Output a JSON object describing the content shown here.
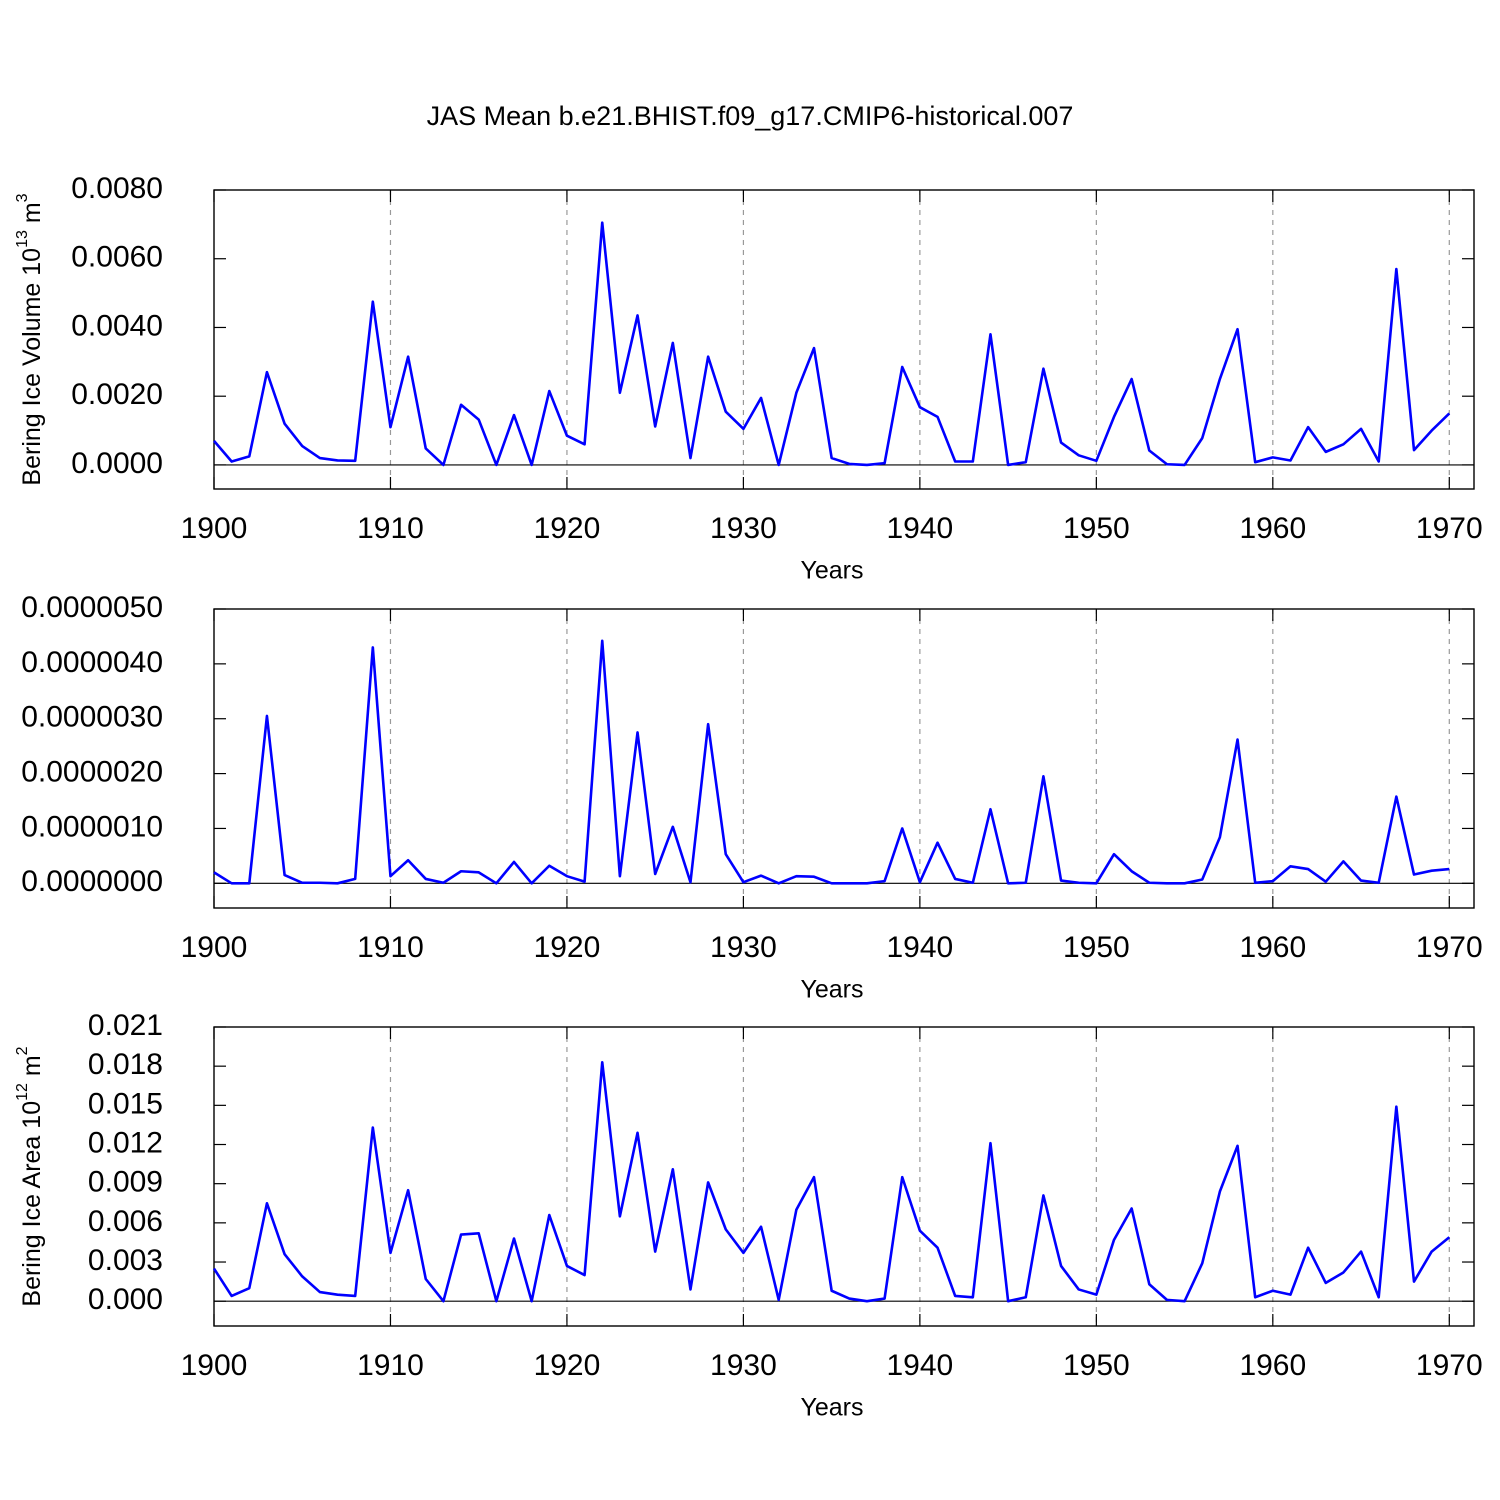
{
  "chart_data": [
    {
      "type": "line",
      "title": "JAS Mean b.e21.BHIST.f09_g17.CMIP6-historical.007",
      "ylabel": [
        "Bering Ice Volume 10",
        "13",
        " m",
        "3"
      ],
      "xlabel": "Years",
      "x": [
        1900,
        1901,
        1902,
        1903,
        1904,
        1905,
        1906,
        1907,
        1908,
        1909,
        1910,
        1911,
        1912,
        1913,
        1914,
        1915,
        1916,
        1917,
        1918,
        1919,
        1920,
        1921,
        1922,
        1923,
        1924,
        1925,
        1926,
        1927,
        1928,
        1929,
        1930,
        1931,
        1932,
        1933,
        1934,
        1935,
        1936,
        1937,
        1938,
        1939,
        1940,
        1941,
        1942,
        1943,
        1944,
        1945,
        1946,
        1947,
        1948,
        1949,
        1950,
        1951,
        1952,
        1953,
        1954,
        1955,
        1956,
        1957,
        1958,
        1959,
        1960,
        1961,
        1962,
        1963,
        1964,
        1965,
        1966,
        1967,
        1968,
        1969,
        1970
      ],
      "values": [
        0.0007,
        0.0001,
        0.00025,
        0.0027,
        0.0012,
        0.00055,
        0.0002,
        0.00013,
        0.00012,
        0.00475,
        0.0011,
        0.00315,
        0.00048,
        0,
        0.00175,
        0.00132,
        0,
        0.00145,
        0,
        0.00215,
        0.00085,
        0.0006,
        0.00705,
        0.0021,
        0.00435,
        0.00112,
        0.00355,
        0.0002,
        0.00315,
        0.00155,
        0.00105,
        0.00195,
        0,
        0.0021,
        0.0034,
        0.0002,
        3e-05,
        0,
        5e-05,
        0.00285,
        0.00168,
        0.0014,
        0.0001,
        0.0001,
        0.0038,
        0,
        8e-05,
        0.0028,
        0.00065,
        0.00028,
        0.00012,
        0.0014,
        0.0025,
        0.00042,
        2e-05,
        0,
        0.00078,
        0.0025,
        0.00395,
        8e-05,
        0.00022,
        0.00013,
        0.0011,
        0.00038,
        0.0006,
        0.00105,
        0.0001,
        0.0057,
        0.00043,
        0.001,
        0.0015
      ],
      "color": "#0000ff",
      "xlim": [
        1900,
        1971.4
      ],
      "xticks": [
        1900,
        1910,
        1920,
        1930,
        1940,
        1950,
        1960,
        1970
      ],
      "ylim": [
        -0.0007,
        0.008
      ],
      "yticks": [
        {
          "value": 0,
          "label": "0.0000"
        },
        {
          "value": 0.002,
          "label": "0.0020"
        },
        {
          "value": 0.004,
          "label": "0.0040"
        },
        {
          "value": 0.006,
          "label": "0.0060"
        },
        {
          "value": 0.008,
          "label": "0.0080"
        }
      ],
      "grid": true,
      "reference_line": 0
    },
    {
      "type": "line",
      "xlabel": "Years",
      "x": [
        1900,
        1901,
        1902,
        1903,
        1904,
        1905,
        1906,
        1907,
        1908,
        1909,
        1910,
        1911,
        1912,
        1913,
        1914,
        1915,
        1916,
        1917,
        1918,
        1919,
        1920,
        1921,
        1922,
        1923,
        1924,
        1925,
        1926,
        1927,
        1928,
        1929,
        1930,
        1931,
        1932,
        1933,
        1934,
        1935,
        1936,
        1937,
        1938,
        1939,
        1940,
        1941,
        1942,
        1943,
        1944,
        1945,
        1946,
        1947,
        1948,
        1949,
        1950,
        1951,
        1952,
        1953,
        1954,
        1955,
        1956,
        1957,
        1958,
        1959,
        1960,
        1961,
        1962,
        1963,
        1964,
        1965,
        1966,
        1967,
        1968,
        1969,
        1970
      ],
      "values": [
        2e-07,
        0,
        0,
        3.05e-06,
        1.5e-07,
        1e-08,
        1e-08,
        0,
        8e-08,
        4.3e-06,
        1.3e-07,
        4.2e-07,
        8e-08,
        1e-08,
        2.2e-07,
        2e-07,
        0,
        3.9e-07,
        0,
        3.2e-07,
        1.3e-07,
        3e-08,
        4.42e-06,
        1.3e-07,
        2.75e-06,
        1.7e-07,
        1.03e-06,
        2e-08,
        2.9e-06,
        5.3e-07,
        2e-08,
        1.4e-07,
        0,
        1.3e-07,
        1.2e-07,
        0,
        0,
        0,
        4e-08,
        1e-06,
        2e-08,
        7.4e-07,
        8e-08,
        1e-08,
        1.35e-06,
        0,
        1e-08,
        1.95e-06,
        5e-08,
        1e-08,
        0,
        5.3e-07,
        2.2e-07,
        1e-08,
        0,
        0,
        7e-08,
        8.4e-07,
        2.62e-06,
        1e-08,
        4e-08,
        3.1e-07,
        2.6e-07,
        3e-08,
        4e-07,
        5e-08,
        1e-08,
        1.58e-06,
        1.6e-07,
        2.3e-07,
        2.6e-07
      ],
      "color": "#0000ff",
      "xlim": [
        1900,
        1971.4
      ],
      "xticks": [
        1900,
        1910,
        1920,
        1930,
        1940,
        1950,
        1960,
        1970
      ],
      "ylim": [
        -4.5e-07,
        5e-06
      ],
      "yticks": [
        {
          "value": 0,
          "label": "0.0000000"
        },
        {
          "value": 1e-06,
          "label": "0.0000010"
        },
        {
          "value": 2e-06,
          "label": "0.0000020"
        },
        {
          "value": 3e-06,
          "label": "0.0000030"
        },
        {
          "value": 4e-06,
          "label": "0.0000040"
        },
        {
          "value": 5e-06,
          "label": "0.0000050"
        }
      ],
      "grid": true,
      "reference_line": 0
    },
    {
      "type": "line",
      "ylabel": [
        "Bering Ice Area 10",
        "12",
        " m",
        "2"
      ],
      "xlabel": "Years",
      "x": [
        1900,
        1901,
        1902,
        1903,
        1904,
        1905,
        1906,
        1907,
        1908,
        1909,
        1910,
        1911,
        1912,
        1913,
        1914,
        1915,
        1916,
        1917,
        1918,
        1919,
        1920,
        1921,
        1922,
        1923,
        1924,
        1925,
        1926,
        1927,
        1928,
        1929,
        1930,
        1931,
        1932,
        1933,
        1934,
        1935,
        1936,
        1937,
        1938,
        1939,
        1940,
        1941,
        1942,
        1943,
        1944,
        1945,
        1946,
        1947,
        1948,
        1949,
        1950,
        1951,
        1952,
        1953,
        1954,
        1955,
        1956,
        1957,
        1958,
        1959,
        1960,
        1961,
        1962,
        1963,
        1964,
        1965,
        1966,
        1967,
        1968,
        1969,
        1970
      ],
      "values": [
        0.0025,
        0.0004,
        0.001,
        0.0075,
        0.0036,
        0.0019,
        0.0007,
        0.0005,
        0.0004,
        0.0133,
        0.0037,
        0.0085,
        0.0017,
        0,
        0.0051,
        0.0052,
        0,
        0.0048,
        0,
        0.0066,
        0.0027,
        0.002,
        0.0183,
        0.0065,
        0.0129,
        0.0038,
        0.0101,
        0.0009,
        0.0091,
        0.0055,
        0.0037,
        0.0057,
        0.0001,
        0.007,
        0.0095,
        0.0008,
        0.0002,
        0,
        0.0002,
        0.0095,
        0.0054,
        0.0041,
        0.0004,
        0.0003,
        0.0121,
        0,
        0.0003,
        0.0081,
        0.0027,
        0.0009,
        0.0005,
        0.0047,
        0.0071,
        0.0013,
        0.0001,
        0,
        0.0029,
        0.0084,
        0.0119,
        0.0003,
        0.0008,
        0.0005,
        0.0041,
        0.0014,
        0.0022,
        0.0038,
        0.0003,
        0.0149,
        0.0015,
        0.0038,
        0.0049
      ],
      "color": "#0000ff",
      "xlim": [
        1900,
        1971.4
      ],
      "xticks": [
        1900,
        1910,
        1920,
        1930,
        1940,
        1950,
        1960,
        1970
      ],
      "ylim": [
        -0.0019,
        0.021
      ],
      "yticks": [
        {
          "value": 0,
          "label": "0.000"
        },
        0.003,
        0.006,
        0.009,
        0.012,
        0.015,
        0.018,
        0.021
      ],
      "grid": true,
      "reference_line": 0
    }
  ]
}
